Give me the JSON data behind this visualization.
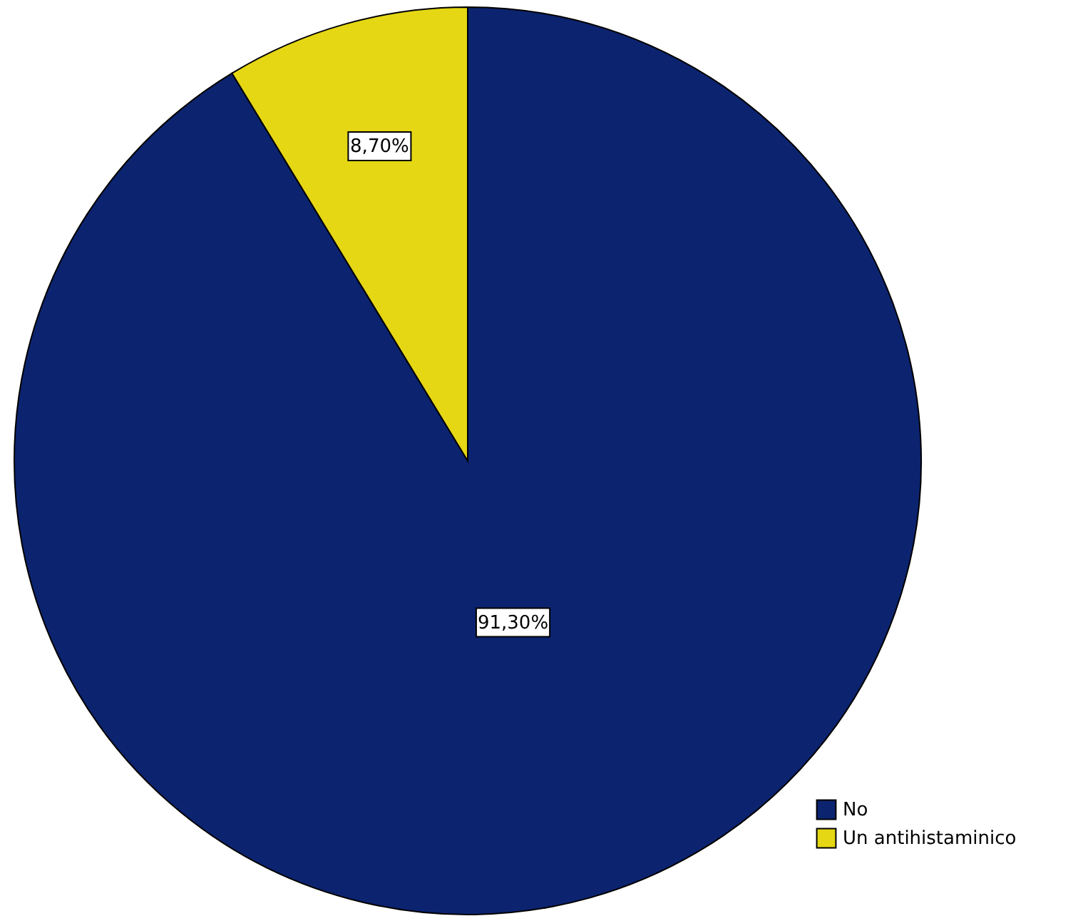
{
  "chart_data": {
    "type": "pie",
    "categories": [
      "No",
      "Un antihistaminico"
    ],
    "values": [
      91.3,
      8.7
    ],
    "colors": [
      "#0c2470",
      "#e5d714"
    ],
    "value_labels": [
      "91,30%",
      "8,70%"
    ],
    "legend": "bottom right"
  }
}
